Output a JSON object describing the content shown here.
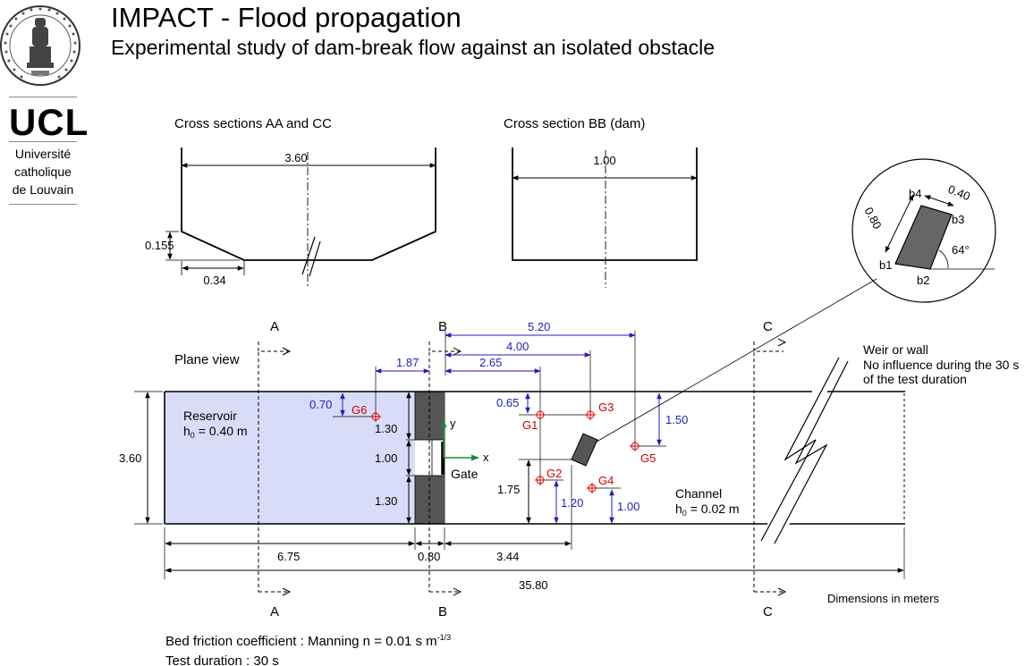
{
  "header": {
    "title": "IMPACT - Flood propagation",
    "subtitle": "Experimental study of dam-break flow against an isolated obstacle"
  },
  "logo": {
    "seal_text": "UNIVERSITAS CATHOLICA LOVANIENSIS",
    "seal_year": "1425",
    "ucl": "UCL",
    "university_lines": [
      "Université",
      "catholique",
      "de Louvain"
    ]
  },
  "cross_sections": {
    "aa_cc_title": "Cross sections AA and CC",
    "aa_cc_width": "3.60",
    "aa_cc_height": "0.155",
    "aa_cc_slope": "0.34",
    "bb_title": "Cross section BB (dam)",
    "bb_width": "1.00"
  },
  "obstacle_detail": {
    "width": "0.40",
    "length": "0.80",
    "angle": "64°",
    "corners": [
      "b1",
      "b2",
      "b3",
      "b4"
    ]
  },
  "plane_view": {
    "title": "Plane view",
    "sections": [
      "A",
      "B",
      "C"
    ],
    "reservoir_label": "Reservoir",
    "reservoir_h_prefix": "h",
    "reservoir_h_sub": "0",
    "reservoir_h_value": " = 0.40 m",
    "channel_label": "Channel",
    "channel_h_prefix": "h",
    "channel_h_sub": "0",
    "channel_h_value": " = 0.02 m",
    "weir_lines": [
      "Weir or wall",
      "No influence during the 30 s",
      "of the test duration"
    ],
    "gate_label": "Gate",
    "axis_x": "x",
    "axis_y": "y",
    "gauges": [
      "G1",
      "G2",
      "G3",
      "G4",
      "G5",
      "G6"
    ],
    "dims": {
      "d520": "5.20",
      "d400": "4.00",
      "d265": "2.65",
      "d187": "1.87",
      "d070": "0.70",
      "d065": "0.65",
      "d150": "1.50",
      "d175": "1.75",
      "d120": "1.20",
      "d100b": "1.00",
      "w360": "3.60",
      "w130a": "1.30",
      "w100": "1.00",
      "w130b": "1.30",
      "l675": "6.75",
      "l080": "0.80",
      "l344": "3.44",
      "l3580": "35.80"
    },
    "units_note": "Dimensions in meters"
  },
  "footer": {
    "friction_text": "Bed friction coefficient : Manning n = 0.01 s m",
    "friction_exp": "-1/3",
    "duration": "Test duration : 30 s"
  },
  "colors": {
    "reservoir_fill": "#d9dcf8",
    "dam_fill": "#555555",
    "dim_blue": "#1f1fbf",
    "gauge_red": "#d40000",
    "axis_green": "#1a8a3a"
  }
}
